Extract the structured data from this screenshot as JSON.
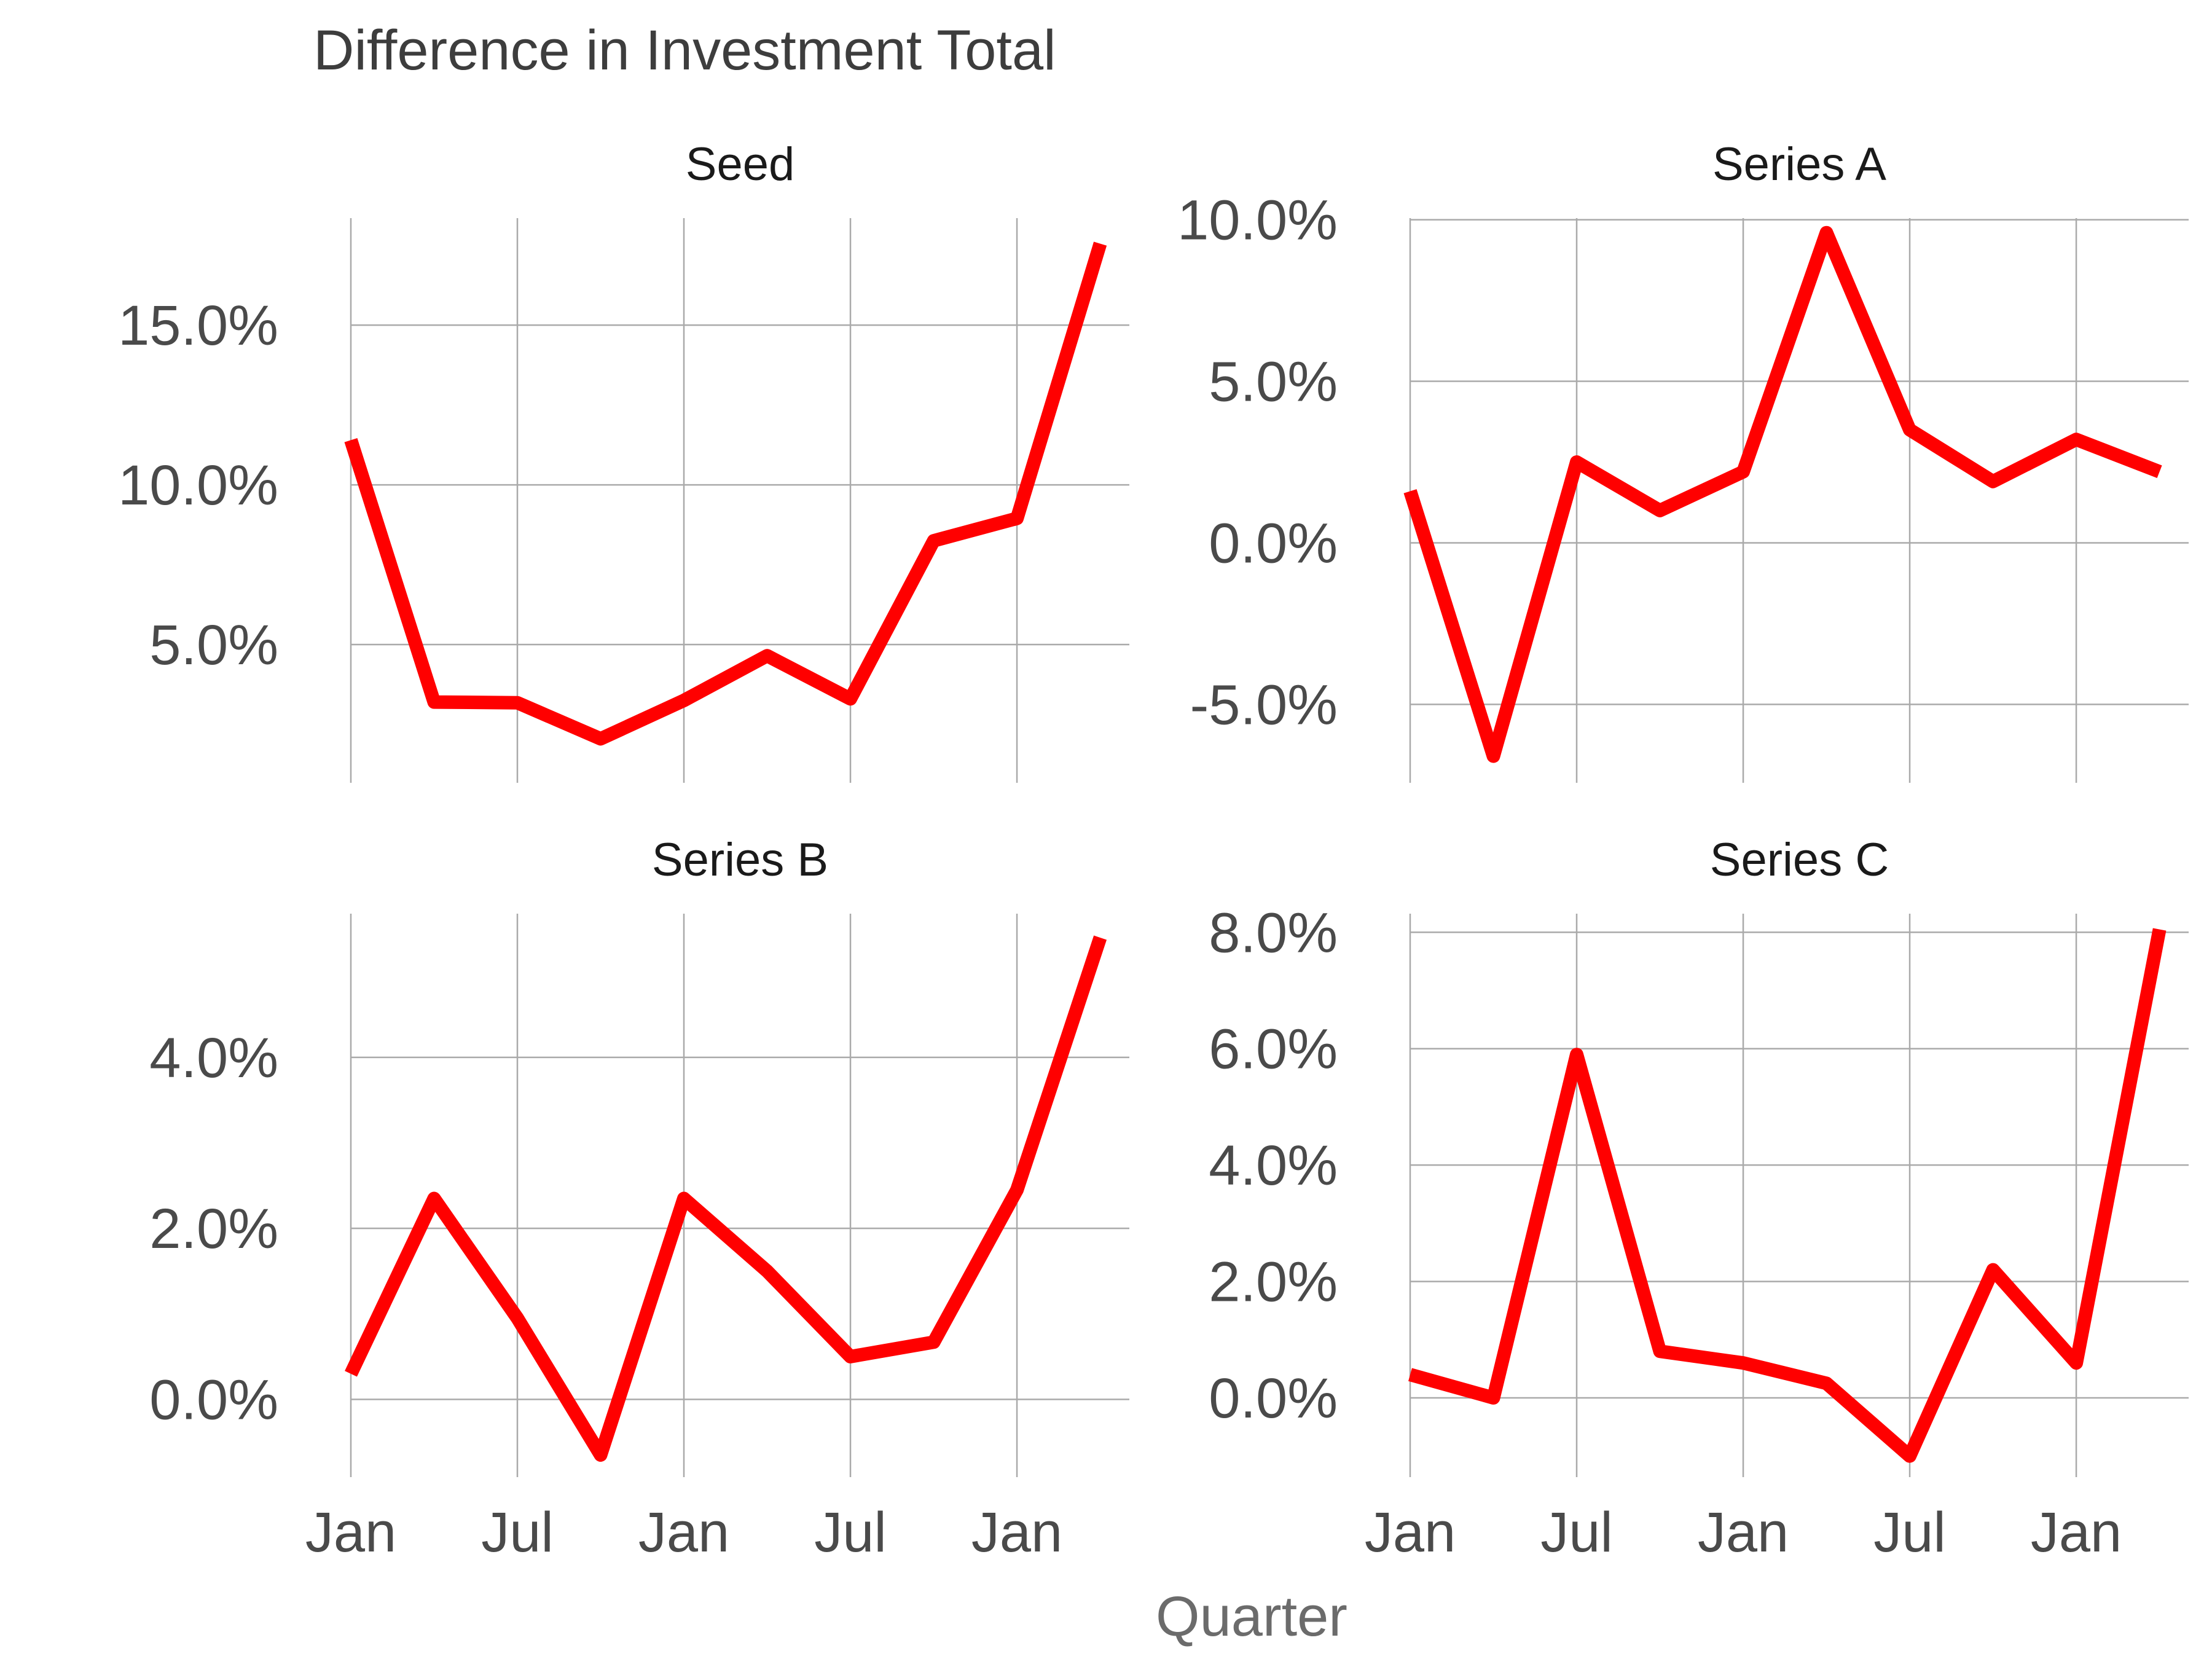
{
  "chart": {
    "title": "Difference in Investment Total",
    "xlabel": "Quarter",
    "line_color": "#ff0000",
    "grid": true
  },
  "chart_data": [
    {
      "type": "line",
      "facet": "Seed",
      "x": [
        "2017-01",
        "2017-04",
        "2017-07",
        "2017-10",
        "2018-01",
        "2018-04",
        "2018-07",
        "2018-10",
        "2019-01",
        "2019-04"
      ],
      "x_ticks": [
        "Jan",
        "Jul",
        "Jan",
        "Jul",
        "Jan"
      ],
      "values": [
        0.114,
        0.032,
        0.0318,
        0.0205,
        0.0325,
        0.0465,
        0.033,
        0.0825,
        0.0895,
        0.1755
      ],
      "ylim": [
        0.0075,
        0.1835
      ],
      "y_ticks": [
        0.05,
        0.1,
        0.15
      ],
      "y_tick_labels": [
        "5.0%",
        "10.0%",
        "15.0%"
      ]
    },
    {
      "type": "line",
      "facet": "Series A",
      "x": [
        "2017-01",
        "2017-04",
        "2017-07",
        "2017-10",
        "2018-01",
        "2018-04",
        "2018-07",
        "2018-10",
        "2019-01",
        "2019-04"
      ],
      "x_ticks": [
        "Jan",
        "Jul",
        "Jan",
        "Jul",
        "Jan"
      ],
      "values": [
        0.016,
        -0.066,
        0.025,
        0.01,
        0.022,
        0.096,
        0.035,
        0.019,
        0.032,
        0.022
      ],
      "ylim": [
        -0.0735,
        0.1005
      ],
      "y_ticks": [
        -0.05,
        0.0,
        0.05,
        0.1
      ],
      "y_tick_labels": [
        "-5.0%",
        "0.0%",
        "5.0%",
        "10.0%"
      ]
    },
    {
      "type": "line",
      "facet": "Series B",
      "x": [
        "2017-01",
        "2017-04",
        "2017-07",
        "2017-10",
        "2018-01",
        "2018-04",
        "2018-07",
        "2018-10",
        "2019-01",
        "2019-04"
      ],
      "x_ticks": [
        "Jan",
        "Jul",
        "Jan",
        "Jul",
        "Jan"
      ],
      "values": [
        0.003,
        0.0235,
        0.0095,
        -0.0065,
        0.0235,
        0.015,
        0.005,
        0.0067,
        0.0245,
        0.054
      ],
      "ylim": [
        -0.0088,
        0.0568
      ],
      "y_ticks": [
        0.0,
        0.02,
        0.04
      ],
      "y_tick_labels": [
        "0.0%",
        "2.0%",
        "4.0%"
      ]
    },
    {
      "type": "line",
      "facet": "Series C",
      "x": [
        "2017-01",
        "2017-04",
        "2017-07",
        "2017-10",
        "2018-01",
        "2018-04",
        "2018-07",
        "2018-10",
        "2019-01",
        "2019-04"
      ],
      "x_ticks": [
        "Jan",
        "Jul",
        "Jan",
        "Jul",
        "Jan"
      ],
      "values": [
        0.004,
        0.0,
        0.059,
        0.008,
        0.006,
        0.0025,
        -0.01,
        0.022,
        0.006,
        0.0805
      ],
      "ylim": [
        -0.0132,
        0.0832
      ],
      "y_ticks": [
        0.0,
        0.02,
        0.04,
        0.06,
        0.08
      ],
      "y_tick_labels": [
        "0.0%",
        "2.0%",
        "4.0%",
        "6.0%",
        "8.0%"
      ]
    }
  ]
}
